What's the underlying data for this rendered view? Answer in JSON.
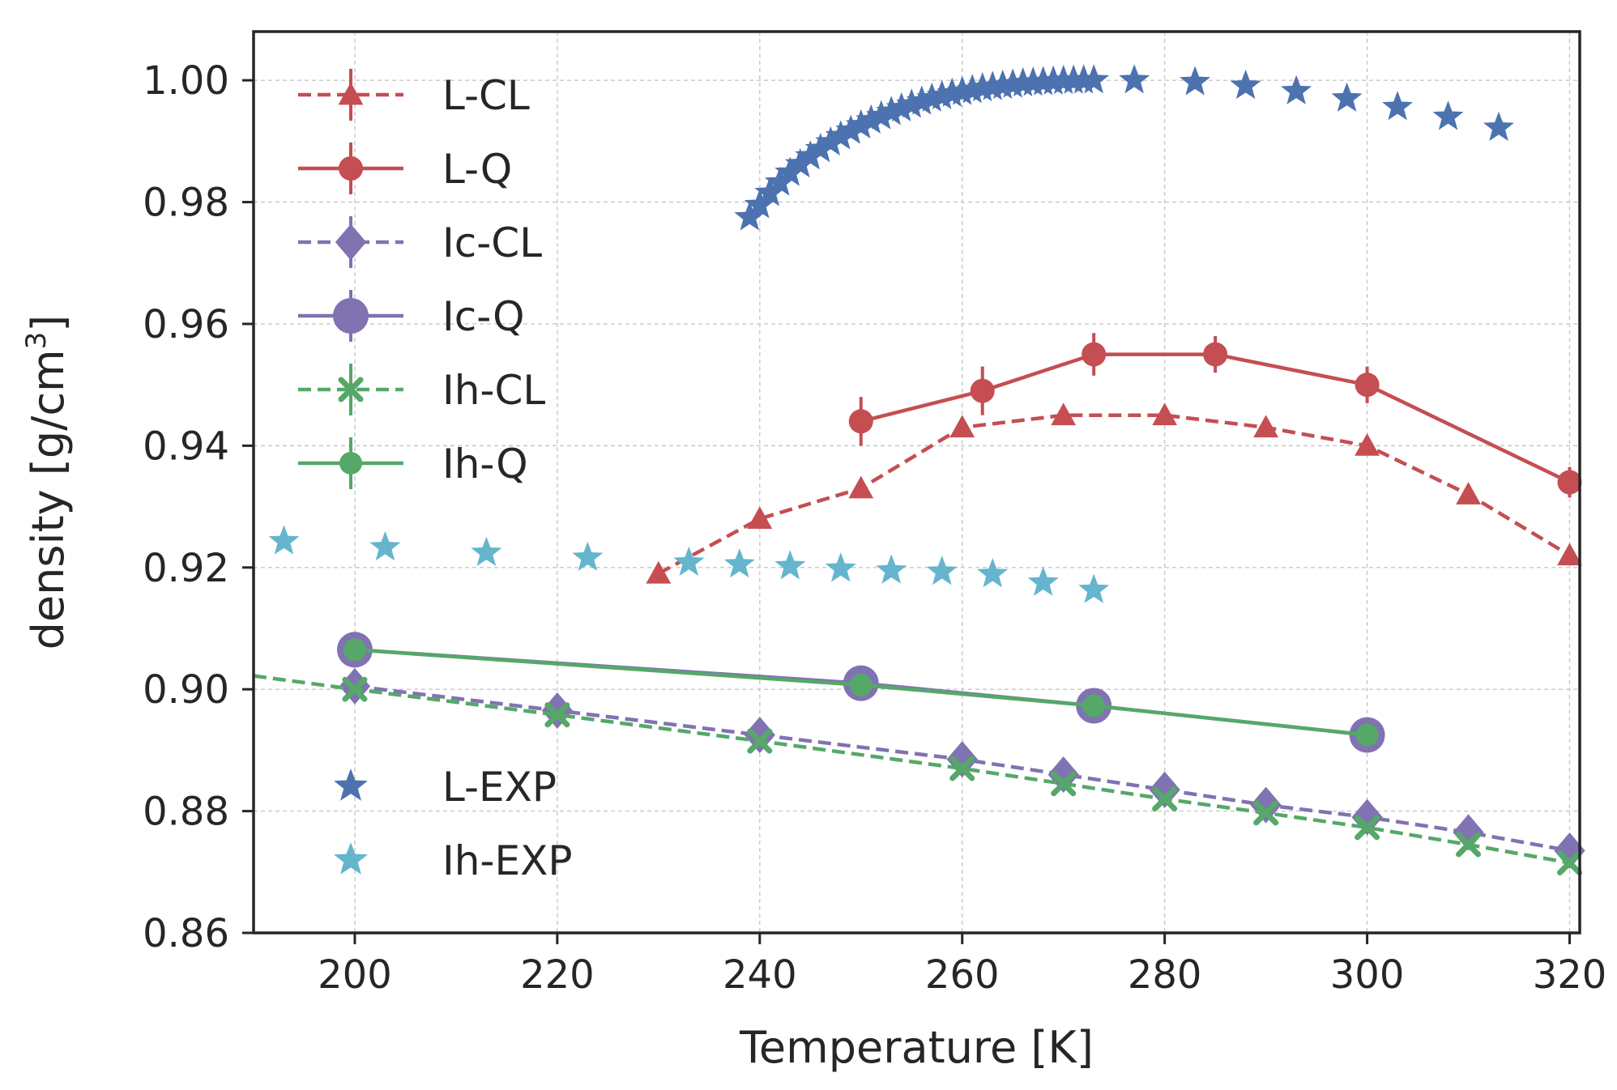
{
  "chart_data": {
    "type": "line",
    "xlabel": "Temperature [K]",
    "ylabel_main": "density [g/cm",
    "ylabel_sup": "3",
    "ylabel_close": "]",
    "xlim": [
      190,
      321
    ],
    "ylim": [
      0.86,
      1.008
    ],
    "xticks": [
      200,
      220,
      240,
      260,
      280,
      300,
      320
    ],
    "yticks": [
      "0.86",
      "0.88",
      "0.90",
      "0.92",
      "0.94",
      "0.96",
      "0.98",
      "1.00"
    ],
    "grid": true,
    "legend_placement": "upper-left",
    "series": [
      {
        "name": "L-CL",
        "color": "#c44e52",
        "dash": "dashed",
        "marker": "triangle",
        "marker_size": 14,
        "points": [
          [
            230,
            0.919
          ],
          [
            240,
            0.928
          ],
          [
            250,
            0.933
          ],
          [
            260,
            0.943
          ],
          [
            270,
            0.945
          ],
          [
            280,
            0.945
          ],
          [
            290,
            0.943
          ],
          [
            300,
            0.94
          ],
          [
            310,
            0.932
          ],
          [
            320,
            0.922
          ]
        ],
        "errors": [
          0,
          0,
          0,
          0,
          0,
          0,
          0,
          0,
          0,
          0
        ]
      },
      {
        "name": "L-Q",
        "color": "#c44e52",
        "dash": "solid",
        "marker": "circle",
        "marker_size": 15,
        "points": [
          [
            250,
            0.944
          ],
          [
            262,
            0.949
          ],
          [
            273,
            0.955
          ],
          [
            285,
            0.955
          ],
          [
            300,
            0.95
          ],
          [
            320,
            0.934
          ]
        ],
        "errors": [
          0.004,
          0.004,
          0.0035,
          0.003,
          0.003,
          0.0025
        ]
      },
      {
        "name": "Ic-CL",
        "color": "#8172b2",
        "dash": "dashed",
        "marker": "diamond",
        "marker_size": 18,
        "points": [
          [
            200,
            0.9005
          ],
          [
            220,
            0.8965
          ],
          [
            240,
            0.8925
          ],
          [
            260,
            0.8885
          ],
          [
            270,
            0.886
          ],
          [
            280,
            0.8835
          ],
          [
            290,
            0.881
          ],
          [
            300,
            0.879
          ],
          [
            310,
            0.8765
          ],
          [
            320,
            0.8735
          ]
        ],
        "errors": [
          0,
          0,
          0,
          0,
          0,
          0,
          0,
          0,
          0,
          0
        ]
      },
      {
        "name": "Ic-Q",
        "color": "#8172b2",
        "dash": "solid",
        "marker": "circle",
        "marker_size": 22,
        "points": [
          [
            200,
            0.9065
          ],
          [
            250,
            0.901
          ],
          [
            273,
            0.8973
          ],
          [
            300,
            0.8925
          ]
        ],
        "errors": [
          0,
          0,
          0,
          0
        ]
      },
      {
        "name": "Ih-CL",
        "color": "#55a868",
        "dash": "dashed",
        "marker": "x",
        "marker_size": 12,
        "points": [
          [
            190,
            0.9022
          ],
          [
            200,
            0.9
          ],
          [
            220,
            0.8958
          ],
          [
            240,
            0.8915
          ],
          [
            260,
            0.887
          ],
          [
            270,
            0.8845
          ],
          [
            280,
            0.882
          ],
          [
            290,
            0.8797
          ],
          [
            300,
            0.8773
          ],
          [
            310,
            0.8745
          ],
          [
            320,
            0.8715
          ]
        ],
        "marked_from": 1,
        "errors": [
          0,
          0,
          0,
          0,
          0,
          0,
          0,
          0,
          0,
          0,
          0
        ]
      },
      {
        "name": "Ih-Q",
        "color": "#55a868",
        "dash": "solid",
        "marker": "circle",
        "marker_size": 14,
        "points": [
          [
            200,
            0.9065
          ],
          [
            250,
            0.9007
          ],
          [
            273,
            0.8973
          ],
          [
            300,
            0.8925
          ]
        ],
        "errors": [
          0,
          0,
          0,
          0
        ]
      }
    ],
    "scatter_series": [
      {
        "name": "L-EXP",
        "color": "#4c72b0",
        "marker": "star",
        "points": [
          [
            239,
            0.9775
          ],
          [
            240,
            0.9795
          ],
          [
            241,
            0.9815
          ],
          [
            242,
            0.9832
          ],
          [
            243,
            0.9848
          ],
          [
            244,
            0.9862
          ],
          [
            245,
            0.9875
          ],
          [
            246,
            0.9887
          ],
          [
            247,
            0.9898
          ],
          [
            248,
            0.9908
          ],
          [
            249,
            0.9917
          ],
          [
            250,
            0.9926
          ],
          [
            251,
            0.9934
          ],
          [
            252,
            0.9941
          ],
          [
            253,
            0.9948
          ],
          [
            254,
            0.9954
          ],
          [
            255,
            0.996
          ],
          [
            256,
            0.9965
          ],
          [
            257,
            0.997
          ],
          [
            258,
            0.9974
          ],
          [
            259,
            0.9978
          ],
          [
            260,
            0.9981
          ],
          [
            261,
            0.9984
          ],
          [
            262,
            0.9987
          ],
          [
            263,
            0.9989
          ],
          [
            264,
            0.9991
          ],
          [
            265,
            0.9993
          ],
          [
            266,
            0.9995
          ],
          [
            267,
            0.9996
          ],
          [
            268,
            0.9997
          ],
          [
            269,
            0.9998
          ],
          [
            270,
            0.9999
          ],
          [
            271,
            0.99995
          ],
          [
            272,
            0.99998
          ],
          [
            273,
            1.0
          ],
          [
            277,
            1.0
          ],
          [
            283,
            0.9997
          ],
          [
            288,
            0.9991
          ],
          [
            293,
            0.9982
          ],
          [
            298,
            0.997
          ],
          [
            303,
            0.9956
          ],
          [
            308,
            0.994
          ],
          [
            313,
            0.9922
          ]
        ]
      },
      {
        "name": "Ih-EXP",
        "color": "#64b5cd",
        "marker": "star",
        "points": [
          [
            193,
            0.9243
          ],
          [
            203,
            0.9233
          ],
          [
            213,
            0.9224
          ],
          [
            223,
            0.9216
          ],
          [
            233,
            0.9208
          ],
          [
            238,
            0.9205
          ],
          [
            243,
            0.9202
          ],
          [
            248,
            0.9198
          ],
          [
            253,
            0.9195
          ],
          [
            258,
            0.9193
          ],
          [
            263,
            0.9189
          ],
          [
            268,
            0.9175
          ],
          [
            273,
            0.9163
          ]
        ]
      }
    ],
    "legend_line_entries": [
      "L-CL",
      "L-Q",
      "Ic-CL",
      "Ic-Q",
      "Ih-CL",
      "Ih-Q"
    ],
    "legend_scatter_entries": [
      "L-EXP",
      "Ih-EXP"
    ]
  }
}
